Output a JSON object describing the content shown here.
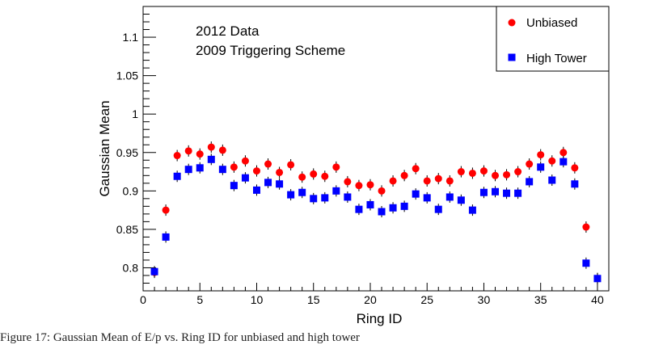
{
  "chart_data": {
    "type": "scatter",
    "title": "",
    "xlabel": "Ring ID",
    "ylabel": "Gaussian Mean",
    "xlim": [
      0,
      41
    ],
    "ylim": [
      0.77,
      1.14
    ],
    "x_ticks": [
      0,
      5,
      10,
      15,
      20,
      25,
      30,
      35,
      40
    ],
    "y_ticks": [
      0.8,
      0.85,
      0.9,
      0.95,
      1,
      1.05,
      1.1
    ],
    "y_tick_labels": [
      "0.8",
      "0.85",
      "0.9",
      "0.95",
      "1",
      "1.05",
      "1.1"
    ],
    "annotations": [
      "2012 Data",
      "2009 Triggering Scheme"
    ],
    "legend_position": "top-right",
    "series": [
      {
        "name": "Unbiased",
        "marker": "circle",
        "color": "#ff0000",
        "x": [
          1,
          2,
          3,
          4,
          5,
          6,
          7,
          8,
          9,
          10,
          11,
          12,
          13,
          14,
          15,
          16,
          17,
          18,
          19,
          20,
          21,
          22,
          23,
          24,
          25,
          26,
          27,
          28,
          29,
          30,
          31,
          32,
          33,
          34,
          35,
          36,
          37,
          38,
          39,
          40
        ],
        "y": [
          0.794,
          0.875,
          0.946,
          0.952,
          0.948,
          0.957,
          0.953,
          0.931,
          0.939,
          0.926,
          0.935,
          0.924,
          0.934,
          0.918,
          0.922,
          0.919,
          0.931,
          0.912,
          0.907,
          0.908,
          0.9,
          0.913,
          0.92,
          0.929,
          0.913,
          0.916,
          0.913,
          0.925,
          0.923,
          0.926,
          0.92,
          0.921,
          0.925,
          0.935,
          0.947,
          0.939,
          0.95,
          0.93,
          0.853,
          0.786
        ]
      },
      {
        "name": "High Tower",
        "marker": "square",
        "color": "#0000ff",
        "x": [
          1,
          2,
          3,
          4,
          5,
          6,
          7,
          8,
          9,
          10,
          11,
          12,
          13,
          14,
          15,
          16,
          17,
          18,
          19,
          20,
          21,
          22,
          23,
          24,
          25,
          26,
          27,
          28,
          29,
          30,
          31,
          32,
          33,
          34,
          35,
          36,
          37,
          38,
          39,
          40
        ],
        "y": [
          0.795,
          0.84,
          0.919,
          0.928,
          0.93,
          0.941,
          0.928,
          0.907,
          0.917,
          0.901,
          0.911,
          0.909,
          0.895,
          0.898,
          0.89,
          0.891,
          0.9,
          0.892,
          0.876,
          0.882,
          0.873,
          0.878,
          0.88,
          0.896,
          0.891,
          0.876,
          0.892,
          0.888,
          0.875,
          0.898,
          0.899,
          0.897,
          0.897,
          0.912,
          0.931,
          0.914,
          0.938,
          0.909,
          0.806,
          0.786
        ]
      }
    ]
  },
  "caption": "Figure 17: Gaussian Mean of E/p vs. Ring ID for unbiased and high tower"
}
